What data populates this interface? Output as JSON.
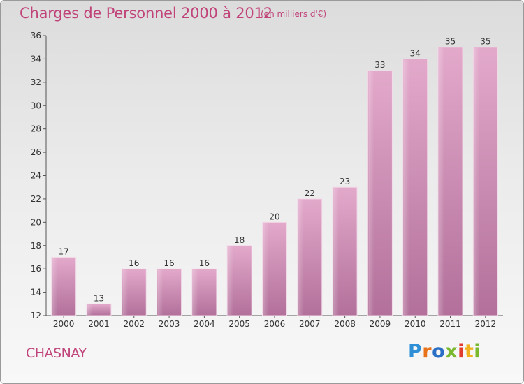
{
  "chart_data": {
    "type": "bar",
    "title": "Charges de Personnel 2000 à 2012",
    "subtitle": "(en milliers d'€)",
    "categories": [
      "2000",
      "2001",
      "2002",
      "2003",
      "2004",
      "2005",
      "2006",
      "2007",
      "2008",
      "2009",
      "2010",
      "2011",
      "2012"
    ],
    "values": [
      17,
      13,
      16,
      16,
      16,
      18,
      20,
      22,
      23,
      33,
      34,
      35,
      35
    ],
    "ylim": [
      12,
      36
    ],
    "yticks": [
      12,
      14,
      16,
      18,
      20,
      22,
      24,
      26,
      28,
      30,
      32,
      34,
      36
    ],
    "grid": false,
    "bar_color": "#d48cb6",
    "title_color": "#c0447a"
  },
  "commune": "CHASNAY",
  "brand": {
    "letters": [
      "P",
      "r",
      "o",
      "x",
      "i",
      "t",
      "i"
    ]
  }
}
